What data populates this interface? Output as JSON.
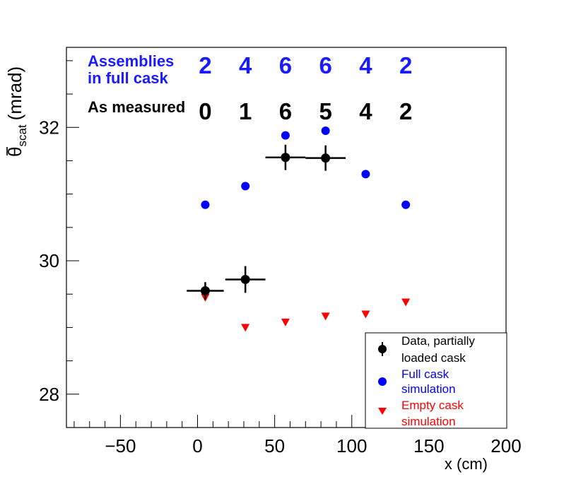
{
  "chart_data": {
    "type": "scatter",
    "xlabel": "x (cm)",
    "ylabel": "θ̄_scat (mrad)",
    "ylabel_main": "θ",
    "ylabel_sub": "scat",
    "ylabel_unit": "(mrad)",
    "xlim": [
      -85,
      200
    ],
    "ylim": [
      27.5,
      33.2
    ],
    "x_ticks": [
      -50,
      0,
      50,
      100,
      150,
      200
    ],
    "x_tick_labels": [
      "−50",
      "0",
      "50",
      "100",
      "150",
      "200"
    ],
    "y_ticks": [
      28,
      30,
      32
    ],
    "y_tick_labels": [
      "28",
      "30",
      "32"
    ],
    "series": [
      {
        "name": "Data, partially loaded cask",
        "legend_lines": [
          "Data, partially",
          "loaded cask"
        ],
        "color": "#000000",
        "marker": "circle-errorbar",
        "points": [
          {
            "x": 5,
            "y": 29.55,
            "xerr": 12,
            "yerr": 0.13
          },
          {
            "x": 31,
            "y": 29.72,
            "xerr": 13,
            "yerr": 0.2
          },
          {
            "x": 57,
            "y": 31.55,
            "xerr": 13,
            "yerr": 0.19
          },
          {
            "x": 83,
            "y": 31.54,
            "xerr": 13,
            "yerr": 0.19
          }
        ]
      },
      {
        "name": "Full cask simulation",
        "legend_lines": [
          "Full cask",
          "simulation"
        ],
        "color": "#0000ff",
        "marker": "circle",
        "points": [
          {
            "x": 5,
            "y": 30.84
          },
          {
            "x": 31,
            "y": 31.12
          },
          {
            "x": 57,
            "y": 31.88
          },
          {
            "x": 83,
            "y": 31.95
          },
          {
            "x": 109,
            "y": 31.3
          },
          {
            "x": 135,
            "y": 30.84
          }
        ]
      },
      {
        "name": "Empty cask simulation",
        "legend_lines": [
          "Empty cask",
          "simulation"
        ],
        "color": "#ff0000",
        "marker": "triangle-down",
        "points": [
          {
            "x": 5,
            "y": 29.45
          },
          {
            "x": 31,
            "y": 29.0
          },
          {
            "x": 57,
            "y": 29.08
          },
          {
            "x": 83,
            "y": 29.17
          },
          {
            "x": 109,
            "y": 29.2
          },
          {
            "x": 135,
            "y": 29.38
          }
        ]
      }
    ],
    "annotations": {
      "full_label_lines": [
        "Assemblies",
        "in full cask"
      ],
      "full_color": "#1a1aff",
      "full_counts": [
        "2",
        "4",
        "6",
        "6",
        "4",
        "2"
      ],
      "measured_label": "As measured",
      "measured_color": "#000000",
      "measured_counts": [
        "0",
        "1",
        "6",
        "5",
        "4",
        "2"
      ],
      "count_x": [
        5,
        31,
        57,
        83,
        109,
        135
      ]
    },
    "legend_position": "bottom-right",
    "grid": false
  }
}
